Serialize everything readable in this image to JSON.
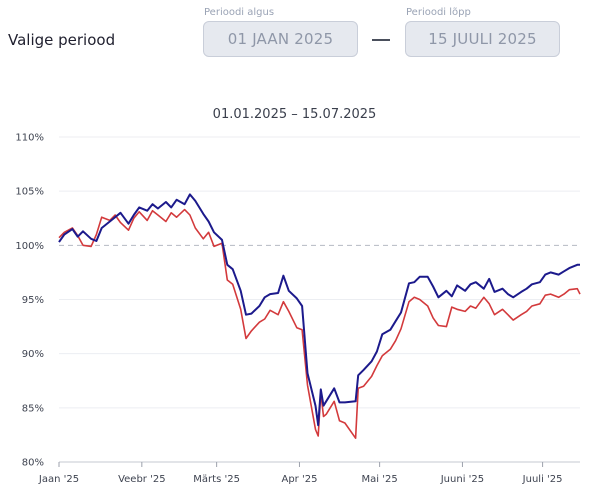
{
  "period": {
    "label": "Valige periood",
    "start_caption": "Perioodi algus",
    "start_value": "01 JAAN 2025",
    "end_caption": "Perioodi lõpp",
    "end_value": "15 JUULI 2025"
  },
  "chart_data": {
    "type": "line",
    "title": "01.01.2025 – 15.07.2025",
    "xlabel": "",
    "ylabel": "",
    "x_range": [
      "2025-01-01",
      "2025-07-15"
    ],
    "ylim": [
      80,
      110
    ],
    "y_ticks": [
      80,
      85,
      90,
      95,
      100,
      105,
      110
    ],
    "y_tick_labels": [
      "80%",
      "85%",
      "90%",
      "95%",
      "100%",
      "105%",
      "110%"
    ],
    "x_ticks": [
      "2025-01-01",
      "2025-02-01",
      "2025-03-01",
      "2025-04-01",
      "2025-05-01",
      "2025-06-01",
      "2025-07-01"
    ],
    "x_tick_labels": [
      "Jaan '25",
      "Veebr '25",
      "Märts '25",
      "Apr '25",
      "Mai '25",
      "Juuni '25",
      "Juuli '25"
    ],
    "reference_line": 100,
    "series": [
      {
        "color": "#1c1a8c",
        "points": [
          [
            "2025-01-01",
            100.3
          ],
          [
            "2025-01-03",
            101.0
          ],
          [
            "2025-01-06",
            101.5
          ],
          [
            "2025-01-08",
            100.8
          ],
          [
            "2025-01-10",
            101.3
          ],
          [
            "2025-01-13",
            100.6
          ],
          [
            "2025-01-15",
            100.4
          ],
          [
            "2025-01-17",
            101.6
          ],
          [
            "2025-01-20",
            102.2
          ],
          [
            "2025-01-22",
            102.6
          ],
          [
            "2025-01-24",
            103.0
          ],
          [
            "2025-01-27",
            102.0
          ],
          [
            "2025-01-29",
            102.8
          ],
          [
            "2025-01-31",
            103.5
          ],
          [
            "2025-02-03",
            103.2
          ],
          [
            "2025-02-05",
            103.8
          ],
          [
            "2025-02-07",
            103.4
          ],
          [
            "2025-02-10",
            104.0
          ],
          [
            "2025-02-12",
            103.5
          ],
          [
            "2025-02-14",
            104.2
          ],
          [
            "2025-02-17",
            103.8
          ],
          [
            "2025-02-19",
            104.7
          ],
          [
            "2025-02-21",
            104.1
          ],
          [
            "2025-02-24",
            102.9
          ],
          [
            "2025-02-26",
            102.2
          ],
          [
            "2025-02-28",
            101.2
          ],
          [
            "2025-03-03",
            100.5
          ],
          [
            "2025-03-05",
            98.2
          ],
          [
            "2025-03-07",
            97.8
          ],
          [
            "2025-03-10",
            95.8
          ],
          [
            "2025-03-12",
            93.6
          ],
          [
            "2025-03-14",
            93.7
          ],
          [
            "2025-03-17",
            94.4
          ],
          [
            "2025-03-19",
            95.2
          ],
          [
            "2025-03-21",
            95.5
          ],
          [
            "2025-03-24",
            95.6
          ],
          [
            "2025-03-26",
            97.2
          ],
          [
            "2025-03-28",
            95.8
          ],
          [
            "2025-03-31",
            95.1
          ],
          [
            "2025-04-02",
            94.4
          ],
          [
            "2025-04-04",
            88.2
          ],
          [
            "2025-04-07",
            85.2
          ],
          [
            "2025-04-08",
            83.4
          ],
          [
            "2025-04-09",
            86.7
          ],
          [
            "2025-04-10",
            85.2
          ],
          [
            "2025-04-11",
            85.6
          ],
          [
            "2025-04-14",
            86.8
          ],
          [
            "2025-04-16",
            85.5
          ],
          [
            "2025-04-18",
            85.5
          ],
          [
            "2025-04-22",
            85.6
          ],
          [
            "2025-04-23",
            88.0
          ],
          [
            "2025-04-25",
            88.5
          ],
          [
            "2025-04-28",
            89.3
          ],
          [
            "2025-04-30",
            90.2
          ],
          [
            "2025-05-02",
            91.8
          ],
          [
            "2025-05-05",
            92.2
          ],
          [
            "2025-05-07",
            93.0
          ],
          [
            "2025-05-09",
            93.8
          ],
          [
            "2025-05-12",
            96.5
          ],
          [
            "2025-05-14",
            96.6
          ],
          [
            "2025-05-16",
            97.1
          ],
          [
            "2025-05-19",
            97.1
          ],
          [
            "2025-05-21",
            96.2
          ],
          [
            "2025-05-23",
            95.2
          ],
          [
            "2025-05-26",
            95.8
          ],
          [
            "2025-05-28",
            95.3
          ],
          [
            "2025-05-30",
            96.3
          ],
          [
            "2025-06-02",
            95.8
          ],
          [
            "2025-06-04",
            96.4
          ],
          [
            "2025-06-06",
            96.6
          ],
          [
            "2025-06-09",
            96.0
          ],
          [
            "2025-06-11",
            96.9
          ],
          [
            "2025-06-13",
            95.7
          ],
          [
            "2025-06-16",
            96.0
          ],
          [
            "2025-06-18",
            95.5
          ],
          [
            "2025-06-20",
            95.2
          ],
          [
            "2025-06-23",
            95.7
          ],
          [
            "2025-06-25",
            96.0
          ],
          [
            "2025-06-27",
            96.4
          ],
          [
            "2025-06-30",
            96.6
          ],
          [
            "2025-07-02",
            97.3
          ],
          [
            "2025-07-04",
            97.5
          ],
          [
            "2025-07-07",
            97.3
          ],
          [
            "2025-07-09",
            97.6
          ],
          [
            "2025-07-11",
            97.9
          ],
          [
            "2025-07-14",
            98.2
          ],
          [
            "2025-07-15",
            98.2
          ]
        ]
      },
      {
        "color": "#d33a3c",
        "points": [
          [
            "2025-01-01",
            100.7
          ],
          [
            "2025-01-03",
            101.2
          ],
          [
            "2025-01-06",
            101.6
          ],
          [
            "2025-01-08",
            100.9
          ],
          [
            "2025-01-10",
            100.0
          ],
          [
            "2025-01-13",
            99.9
          ],
          [
            "2025-01-15",
            101.0
          ],
          [
            "2025-01-17",
            102.6
          ],
          [
            "2025-01-20",
            102.3
          ],
          [
            "2025-01-22",
            102.8
          ],
          [
            "2025-01-24",
            102.1
          ],
          [
            "2025-01-27",
            101.4
          ],
          [
            "2025-01-29",
            102.5
          ],
          [
            "2025-01-31",
            103.1
          ],
          [
            "2025-02-03",
            102.3
          ],
          [
            "2025-02-05",
            103.2
          ],
          [
            "2025-02-07",
            102.8
          ],
          [
            "2025-02-10",
            102.2
          ],
          [
            "2025-02-12",
            103.0
          ],
          [
            "2025-02-14",
            102.6
          ],
          [
            "2025-02-17",
            103.3
          ],
          [
            "2025-02-19",
            102.8
          ],
          [
            "2025-02-21",
            101.6
          ],
          [
            "2025-02-24",
            100.6
          ],
          [
            "2025-02-26",
            101.2
          ],
          [
            "2025-02-28",
            99.9
          ],
          [
            "2025-03-03",
            100.2
          ],
          [
            "2025-03-05",
            96.8
          ],
          [
            "2025-03-07",
            96.4
          ],
          [
            "2025-03-10",
            94.1
          ],
          [
            "2025-03-12",
            91.4
          ],
          [
            "2025-03-14",
            92.1
          ],
          [
            "2025-03-17",
            92.9
          ],
          [
            "2025-03-19",
            93.2
          ],
          [
            "2025-03-21",
            94.0
          ],
          [
            "2025-03-24",
            93.6
          ],
          [
            "2025-03-26",
            94.8
          ],
          [
            "2025-03-28",
            93.9
          ],
          [
            "2025-03-31",
            92.4
          ],
          [
            "2025-04-02",
            92.2
          ],
          [
            "2025-04-04",
            87.1
          ],
          [
            "2025-04-07",
            83.0
          ],
          [
            "2025-04-08",
            82.4
          ],
          [
            "2025-04-09",
            86.4
          ],
          [
            "2025-04-10",
            84.2
          ],
          [
            "2025-04-11",
            84.4
          ],
          [
            "2025-04-14",
            85.6
          ],
          [
            "2025-04-16",
            83.8
          ],
          [
            "2025-04-18",
            83.6
          ],
          [
            "2025-04-22",
            82.2
          ],
          [
            "2025-04-23",
            86.8
          ],
          [
            "2025-04-25",
            87.0
          ],
          [
            "2025-04-28",
            87.9
          ],
          [
            "2025-04-30",
            88.9
          ],
          [
            "2025-05-02",
            89.8
          ],
          [
            "2025-05-05",
            90.4
          ],
          [
            "2025-05-07",
            91.2
          ],
          [
            "2025-05-09",
            92.3
          ],
          [
            "2025-05-12",
            94.8
          ],
          [
            "2025-05-14",
            95.2
          ],
          [
            "2025-05-16",
            95.0
          ],
          [
            "2025-05-19",
            94.4
          ],
          [
            "2025-05-21",
            93.3
          ],
          [
            "2025-05-23",
            92.6
          ],
          [
            "2025-05-26",
            92.5
          ],
          [
            "2025-05-28",
            94.3
          ],
          [
            "2025-05-30",
            94.1
          ],
          [
            "2025-06-02",
            93.9
          ],
          [
            "2025-06-04",
            94.4
          ],
          [
            "2025-06-06",
            94.2
          ],
          [
            "2025-06-09",
            95.2
          ],
          [
            "2025-06-11",
            94.6
          ],
          [
            "2025-06-13",
            93.6
          ],
          [
            "2025-06-16",
            94.1
          ],
          [
            "2025-06-18",
            93.6
          ],
          [
            "2025-06-20",
            93.1
          ],
          [
            "2025-06-23",
            93.6
          ],
          [
            "2025-06-25",
            93.9
          ],
          [
            "2025-06-27",
            94.4
          ],
          [
            "2025-06-30",
            94.6
          ],
          [
            "2025-07-02",
            95.4
          ],
          [
            "2025-07-04",
            95.5
          ],
          [
            "2025-07-07",
            95.2
          ],
          [
            "2025-07-09",
            95.5
          ],
          [
            "2025-07-11",
            95.9
          ],
          [
            "2025-07-14",
            96.0
          ],
          [
            "2025-07-15",
            95.5
          ]
        ]
      }
    ]
  }
}
